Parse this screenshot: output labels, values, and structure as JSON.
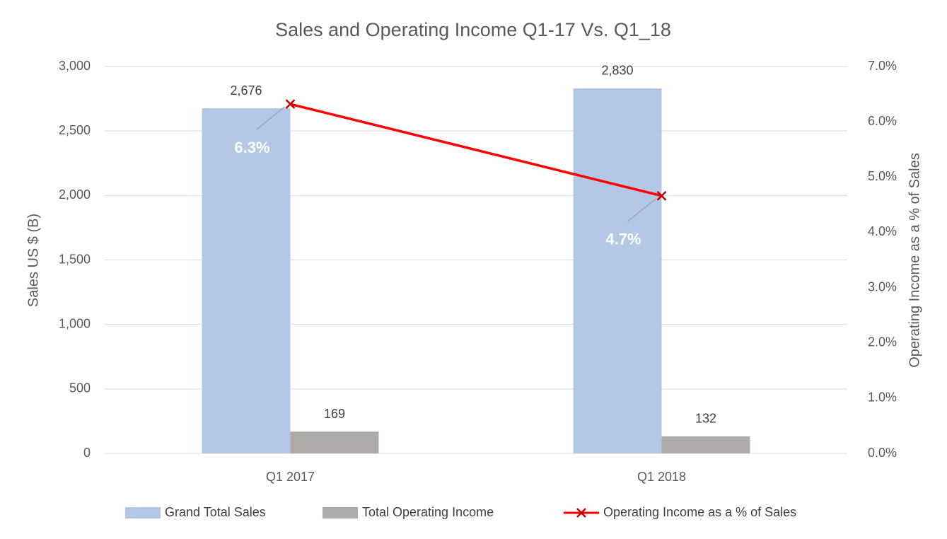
{
  "chart_data": {
    "type": "bar",
    "title": "Sales and Operating Income Q1-17 Vs. Q1_18",
    "y_label": "Sales US $ (B)",
    "y2_label": "Operating Income as a % of Sales",
    "categories": [
      "Q1 2017",
      "Q1 2018"
    ],
    "series": [
      {
        "name": "Grand Total Sales",
        "color": "#b4c7e7",
        "values": [
          2676,
          2830
        ],
        "value_labels": [
          "2,676",
          "2,830"
        ]
      },
      {
        "name": "Total Operating Income",
        "color": "#aeaaaa",
        "values": [
          169,
          132
        ]
      },
      {
        "name": "Operating Income as a % of Sales",
        "type": "line",
        "axis": "y2",
        "color": "#ff0000",
        "marker": "x",
        "values": [
          6.32,
          4.66
        ],
        "value_labels": [
          "6.3%",
          "4.7%"
        ]
      }
    ],
    "ylim": [
      0,
      3000
    ],
    "yticks": [
      0,
      500,
      {
        "value": 1000,
        "label": "1,000"
      },
      {
        "value": 1500,
        "label": "1,500"
      },
      {
        "value": 2000,
        "label": "2,000"
      },
      {
        "value": 2500,
        "label": "2,500"
      },
      {
        "value": 3000,
        "label": "3,000"
      }
    ],
    "y2lim": [
      0,
      7
    ],
    "y2ticks": [
      {
        "value": 0,
        "label": "0.0%"
      },
      {
        "value": 1,
        "label": "1.0%"
      },
      {
        "value": 2,
        "label": "2.0%"
      },
      {
        "value": 3,
        "label": "3.0%"
      },
      {
        "value": 4,
        "label": "4.0%"
      },
      {
        "value": 5,
        "label": "5.0%"
      },
      {
        "value": 6,
        "label": "6.0%"
      },
      {
        "value": 7,
        "label": "7.0%"
      }
    ],
    "grid": true,
    "legend": "bottom"
  }
}
